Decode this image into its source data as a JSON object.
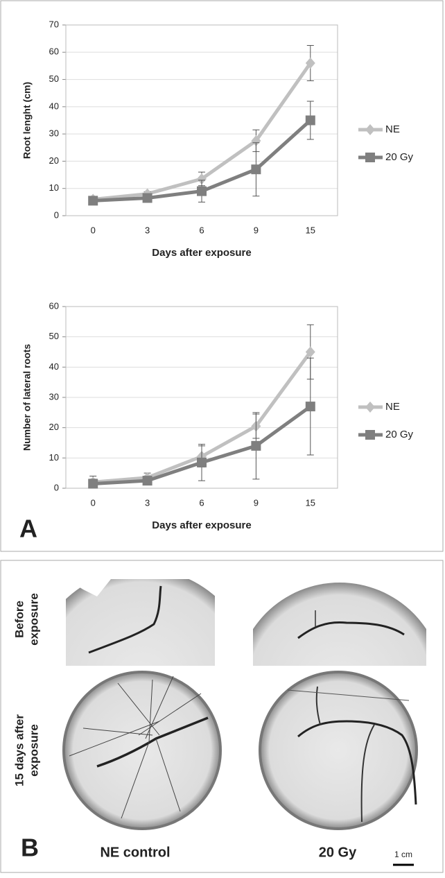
{
  "chart_data": [
    {
      "type": "line",
      "categories": [
        "0",
        "3",
        "6",
        "9",
        "15"
      ],
      "ylabel": "Root lenght (cm)",
      "xlabel": "Days after exposure",
      "ylim": [
        0,
        70
      ],
      "yticks": [
        0,
        10,
        20,
        30,
        40,
        50,
        60,
        70
      ],
      "grid": true,
      "legend": "right",
      "series": [
        {
          "name": "NE",
          "color": "#c0c0c0",
          "marker": "diamond",
          "values": [
            6,
            8,
            13.5,
            27.5,
            56
          ],
          "errors": [
            0.6,
            0.8,
            2.5,
            4,
            6.5
          ]
        },
        {
          "name": "20 Gy",
          "color": "#7f7f7f",
          "marker": "square",
          "values": [
            5.5,
            6.5,
            9,
            17,
            35
          ],
          "errors": [
            0.5,
            0.7,
            4,
            9.8,
            7
          ]
        }
      ]
    },
    {
      "type": "line",
      "categories": [
        "0",
        "3",
        "6",
        "9",
        "15"
      ],
      "ylabel": "Number of lateral roots",
      "xlabel": "Days after exposure",
      "ylim": [
        0,
        60
      ],
      "yticks": [
        0,
        10,
        20,
        30,
        40,
        50,
        60
      ],
      "grid": true,
      "legend": "right",
      "series": [
        {
          "name": "NE",
          "color": "#c0c0c0",
          "marker": "diamond",
          "values": [
            2,
            3.5,
            10.5,
            20.5,
            45
          ],
          "errors": [
            2,
            1.5,
            3.5,
            4,
            9
          ]
        },
        {
          "name": "20 Gy",
          "color": "#7f7f7f",
          "marker": "square",
          "values": [
            1.5,
            2.5,
            8.5,
            14,
            27
          ],
          "errors": [
            1.5,
            1,
            6,
            11,
            16
          ]
        }
      ]
    }
  ],
  "panel_a": {
    "label": "A"
  },
  "panel_b": {
    "label": "B",
    "row_labels": [
      [
        "Before",
        "exposure"
      ],
      [
        "15 days after",
        "exposure"
      ]
    ],
    "column_labels": [
      "NE control",
      "20 Gy"
    ],
    "scale_bar": "1 cm"
  }
}
